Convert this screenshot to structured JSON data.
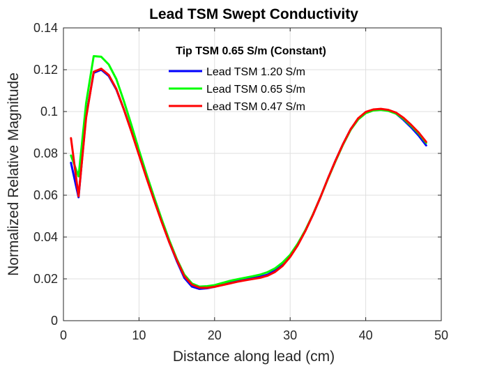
{
  "chart_data": {
    "type": "line",
    "title": "Lead TSM Swept Conductivity",
    "xlabel": "Distance along lead (cm)",
    "ylabel": "Normalized Relative Magnitude",
    "xlim": [
      0,
      50
    ],
    "ylim": [
      0,
      0.14
    ],
    "xticks": [
      0,
      10,
      20,
      30,
      40,
      50
    ],
    "xtick_labels": [
      "0",
      "10",
      "20",
      "30",
      "40",
      "50"
    ],
    "yticks": [
      0,
      0.02,
      0.04,
      0.06,
      0.08,
      0.1,
      0.12,
      0.14
    ],
    "ytick_labels": [
      "0",
      "0.02",
      "0.04",
      "0.06",
      "0.08",
      "0.1",
      "0.12",
      "0.14"
    ],
    "grid": true,
    "legend": {
      "title": "Tip TSM 0.65 S/m (Constant)",
      "location": "top-center",
      "entries": [
        "Lead TSM 1.20 S/m",
        "Lead TSM 0.65 S/m",
        "Lead TSM 0.47 S/m"
      ]
    },
    "series": [
      {
        "name": "Lead TSM 1.20 S/m",
        "color": "#0000ff",
        "x": [
          1,
          2,
          3,
          4,
          5,
          6,
          7,
          8,
          9,
          10,
          11,
          12,
          13,
          14,
          15,
          16,
          17,
          18,
          19,
          20,
          21,
          22,
          23,
          24,
          25,
          26,
          27,
          28,
          29,
          30,
          31,
          32,
          33,
          34,
          35,
          36,
          37,
          38,
          39,
          40,
          41,
          42,
          43,
          44,
          45,
          46,
          47,
          48
        ],
        "y": [
          0.0755,
          0.059,
          0.098,
          0.1185,
          0.12,
          0.117,
          0.1105,
          0.101,
          0.0905,
          0.0795,
          0.0685,
          0.058,
          0.0475,
          0.0375,
          0.0285,
          0.0205,
          0.0163,
          0.0152,
          0.0155,
          0.0162,
          0.0172,
          0.0182,
          0.0192,
          0.0198,
          0.0203,
          0.021,
          0.022,
          0.024,
          0.027,
          0.031,
          0.0365,
          0.043,
          0.0505,
          0.059,
          0.068,
          0.0765,
          0.0845,
          0.0915,
          0.0965,
          0.0995,
          0.1008,
          0.101,
          0.1005,
          0.099,
          0.096,
          0.0925,
          0.0885,
          0.0838
        ]
      },
      {
        "name": "Lead TSM 0.65 S/m",
        "color": "#00ff00",
        "x": [
          1,
          2,
          3,
          4,
          5,
          6,
          7,
          8,
          9,
          10,
          11,
          12,
          13,
          14,
          15,
          16,
          17,
          18,
          19,
          20,
          21,
          22,
          23,
          24,
          25,
          26,
          27,
          28,
          29,
          30,
          31,
          32,
          33,
          34,
          35,
          36,
          37,
          38,
          39,
          40,
          41,
          42,
          43,
          44,
          45,
          46,
          47,
          48
        ],
        "y": [
          0.079,
          0.069,
          0.104,
          0.1265,
          0.1262,
          0.1225,
          0.1155,
          0.105,
          0.0935,
          0.0815,
          0.07,
          0.059,
          0.0485,
          0.0385,
          0.0295,
          0.022,
          0.0178,
          0.0163,
          0.0165,
          0.017,
          0.018,
          0.019,
          0.0198,
          0.0205,
          0.0212,
          0.022,
          0.0232,
          0.025,
          0.0278,
          0.0315,
          0.0368,
          0.0432,
          0.0507,
          0.059,
          0.0678,
          0.0762,
          0.0842,
          0.0912,
          0.0962,
          0.0992,
          0.1005,
          0.1008,
          0.1003,
          0.099,
          0.0965,
          0.0932,
          0.0895,
          0.085
        ]
      },
      {
        "name": "Lead TSM 0.47 S/m",
        "color": "#ff0000",
        "x": [
          1,
          2,
          3,
          4,
          5,
          6,
          7,
          8,
          9,
          10,
          11,
          12,
          13,
          14,
          15,
          16,
          17,
          18,
          19,
          20,
          21,
          22,
          23,
          24,
          25,
          26,
          27,
          28,
          29,
          30,
          31,
          32,
          33,
          34,
          35,
          36,
          37,
          38,
          39,
          40,
          41,
          42,
          43,
          44,
          45,
          46,
          47,
          48
        ],
        "y": [
          0.0873,
          0.0595,
          0.097,
          0.119,
          0.1205,
          0.1175,
          0.1108,
          0.101,
          0.0903,
          0.0792,
          0.0682,
          0.0575,
          0.0472,
          0.0375,
          0.029,
          0.0213,
          0.0172,
          0.0158,
          0.0157,
          0.0162,
          0.017,
          0.0178,
          0.0186,
          0.0193,
          0.0199,
          0.0205,
          0.0215,
          0.0233,
          0.0262,
          0.0305,
          0.036,
          0.0428,
          0.0505,
          0.059,
          0.068,
          0.0765,
          0.0845,
          0.0915,
          0.0968,
          0.0998,
          0.101,
          0.1013,
          0.1008,
          0.0995,
          0.097,
          0.0937,
          0.09,
          0.0855
        ]
      }
    ]
  }
}
